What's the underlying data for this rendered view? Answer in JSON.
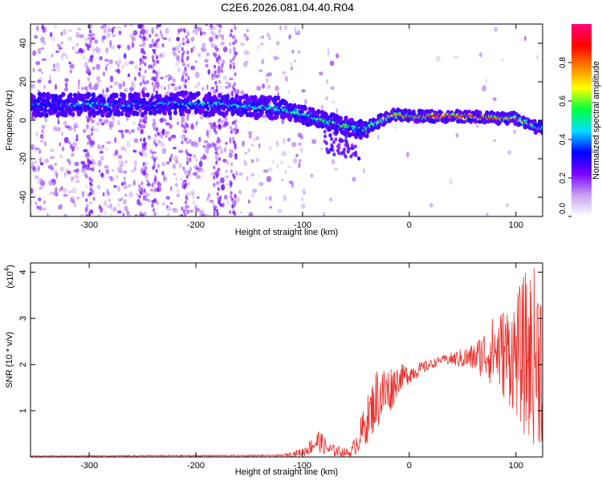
{
  "title": "C2E6.2026.081.04.40.R04",
  "colors": {
    "axis": "#000000",
    "snr_line": "#e8302c",
    "colormap": [
      "#ffffff",
      "#c8a0f0",
      "#7a00ff",
      "#0000ff",
      "#00e0ff",
      "#00ff40",
      "#ffff00",
      "#ff8000",
      "#ff0000",
      "#ff0080"
    ]
  },
  "chart_data": [
    {
      "type": "heatmap",
      "xlabel": "Height of straight line (km)",
      "ylabel": "Frequency (Hz)",
      "xlim": [
        -355,
        125
      ],
      "ylim": [
        -50,
        50
      ],
      "x_ticks": [
        -300,
        -200,
        -100,
        0,
        100
      ],
      "y_ticks": [
        -40,
        -20,
        0,
        20,
        40
      ],
      "x_tick_labels": [
        "-300",
        "-200",
        "-100",
        "0",
        "100"
      ],
      "y_tick_labels": [
        "-40",
        "-20",
        "0",
        "20",
        "40"
      ],
      "colorbar": {
        "label": "Normalized spectral amplitude",
        "range": [
          0,
          1
        ],
        "ticks": [
          0.0,
          0.2,
          0.4,
          0.6,
          0.8
        ],
        "tick_labels": [
          "0.0",
          "0.2",
          "0.4",
          "0.6",
          "0.8"
        ]
      },
      "ridge": [
        {
          "x": -330,
          "y": 8,
          "amp": 0.35
        },
        {
          "x": -300,
          "y": 8,
          "amp": 0.45
        },
        {
          "x": -260,
          "y": 8,
          "amp": 0.4
        },
        {
          "x": -220,
          "y": 9,
          "amp": 0.4
        },
        {
          "x": -180,
          "y": 8,
          "amp": 0.45
        },
        {
          "x": -150,
          "y": 7,
          "amp": 0.45
        },
        {
          "x": -120,
          "y": 6,
          "amp": 0.5
        },
        {
          "x": -100,
          "y": 3,
          "amp": 0.5
        },
        {
          "x": -80,
          "y": 0,
          "amp": 0.55
        },
        {
          "x": -60,
          "y": -3,
          "amp": 0.55
        },
        {
          "x": -45,
          "y": -5,
          "amp": 0.5
        },
        {
          "x": -30,
          "y": -1,
          "amp": 0.6
        },
        {
          "x": -15,
          "y": 3,
          "amp": 0.75
        },
        {
          "x": 0,
          "y": 2,
          "amp": 0.8
        },
        {
          "x": 30,
          "y": 2,
          "amp": 0.95
        },
        {
          "x": 60,
          "y": 2,
          "amp": 0.95
        },
        {
          "x": 80,
          "y": 1,
          "amp": 0.85
        },
        {
          "x": 100,
          "y": 1,
          "amp": 0.7
        },
        {
          "x": 120,
          "y": -4,
          "amp": 0.5
        }
      ]
    },
    {
      "type": "line",
      "xlabel": "Height of straight line (km)",
      "ylabel": "SNR (10 * v/v)",
      "y_multiplier": "(x10",
      "y_multiplier_exp": "4",
      "xlim": [
        -355,
        125
      ],
      "ylim": [
        0,
        4.2
      ],
      "x_ticks": [
        -300,
        -200,
        -100,
        0,
        100
      ],
      "y_ticks": [
        1,
        2,
        3,
        4
      ],
      "x_tick_labels": [
        "-300",
        "-200",
        "-100",
        "0",
        "100"
      ],
      "y_tick_labels": [
        "1",
        "2",
        "3",
        "4"
      ],
      "series": [
        {
          "envelope": [
            {
              "x": -355,
              "mean": 0.02,
              "amp": 0.01
            },
            {
              "x": -120,
              "mean": 0.03,
              "amp": 0.02
            },
            {
              "x": -100,
              "mean": 0.1,
              "amp": 0.1
            },
            {
              "x": -85,
              "mean": 0.35,
              "amp": 0.25
            },
            {
              "x": -75,
              "mean": 0.15,
              "amp": 0.15
            },
            {
              "x": -55,
              "mean": 0.08,
              "amp": 0.08
            },
            {
              "x": -45,
              "mean": 0.5,
              "amp": 0.4
            },
            {
              "x": -30,
              "mean": 1.3,
              "amp": 0.7
            },
            {
              "x": -20,
              "mean": 1.4,
              "amp": 0.6
            },
            {
              "x": -10,
              "mean": 1.7,
              "amp": 0.3
            },
            {
              "x": 10,
              "mean": 1.9,
              "amp": 0.15
            },
            {
              "x": 30,
              "mean": 2.1,
              "amp": 0.08
            },
            {
              "x": 60,
              "mean": 2.15,
              "amp": 0.3
            },
            {
              "x": 80,
              "mean": 2.3,
              "amp": 0.8
            },
            {
              "x": 100,
              "mean": 2.2,
              "amp": 1.3
            },
            {
              "x": 110,
              "mean": 2.2,
              "amp": 1.9
            },
            {
              "x": 125,
              "mean": 2.2,
              "amp": 2.0
            }
          ]
        }
      ]
    }
  ]
}
